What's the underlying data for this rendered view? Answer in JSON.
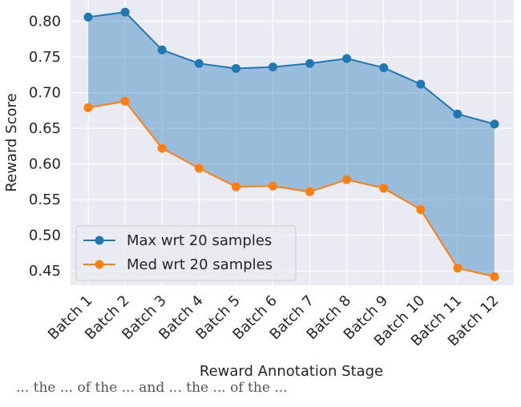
{
  "chart_data": {
    "type": "line",
    "categories": [
      "Batch 1",
      "Batch 2",
      "Batch 3",
      "Batch 4",
      "Batch 5",
      "Batch 6",
      "Batch 7",
      "Batch 8",
      "Batch 9",
      "Batch 10",
      "Batch 11",
      "Batch 12"
    ],
    "series": [
      {
        "name": "Max wrt 20 samples",
        "color": "#1f77b4",
        "values": [
          0.806,
          0.813,
          0.76,
          0.741,
          0.734,
          0.736,
          0.741,
          0.748,
          0.735,
          0.712,
          0.67,
          0.656
        ]
      },
      {
        "name": "Med wrt 20 samples",
        "color": "#ff7f0e",
        "values": [
          0.679,
          0.688,
          0.622,
          0.594,
          0.568,
          0.569,
          0.561,
          0.578,
          0.566,
          0.536,
          0.454,
          0.442
        ]
      }
    ],
    "fill_between": true,
    "fill_color": "#1f77b4",
    "title": "",
    "xlabel": "Reward Annotation Stage",
    "ylabel": "Reward Score",
    "ylim": [
      0.43,
      0.83
    ],
    "yticks": [
      "0.45",
      "0.50",
      "0.55",
      "0.60",
      "0.65",
      "0.70",
      "0.75",
      "0.80"
    ],
    "grid": true,
    "legend_position": "lower-left",
    "background": "#eaeaf2"
  },
  "caption": "... the ... of the ... and ... the ... of the ..."
}
